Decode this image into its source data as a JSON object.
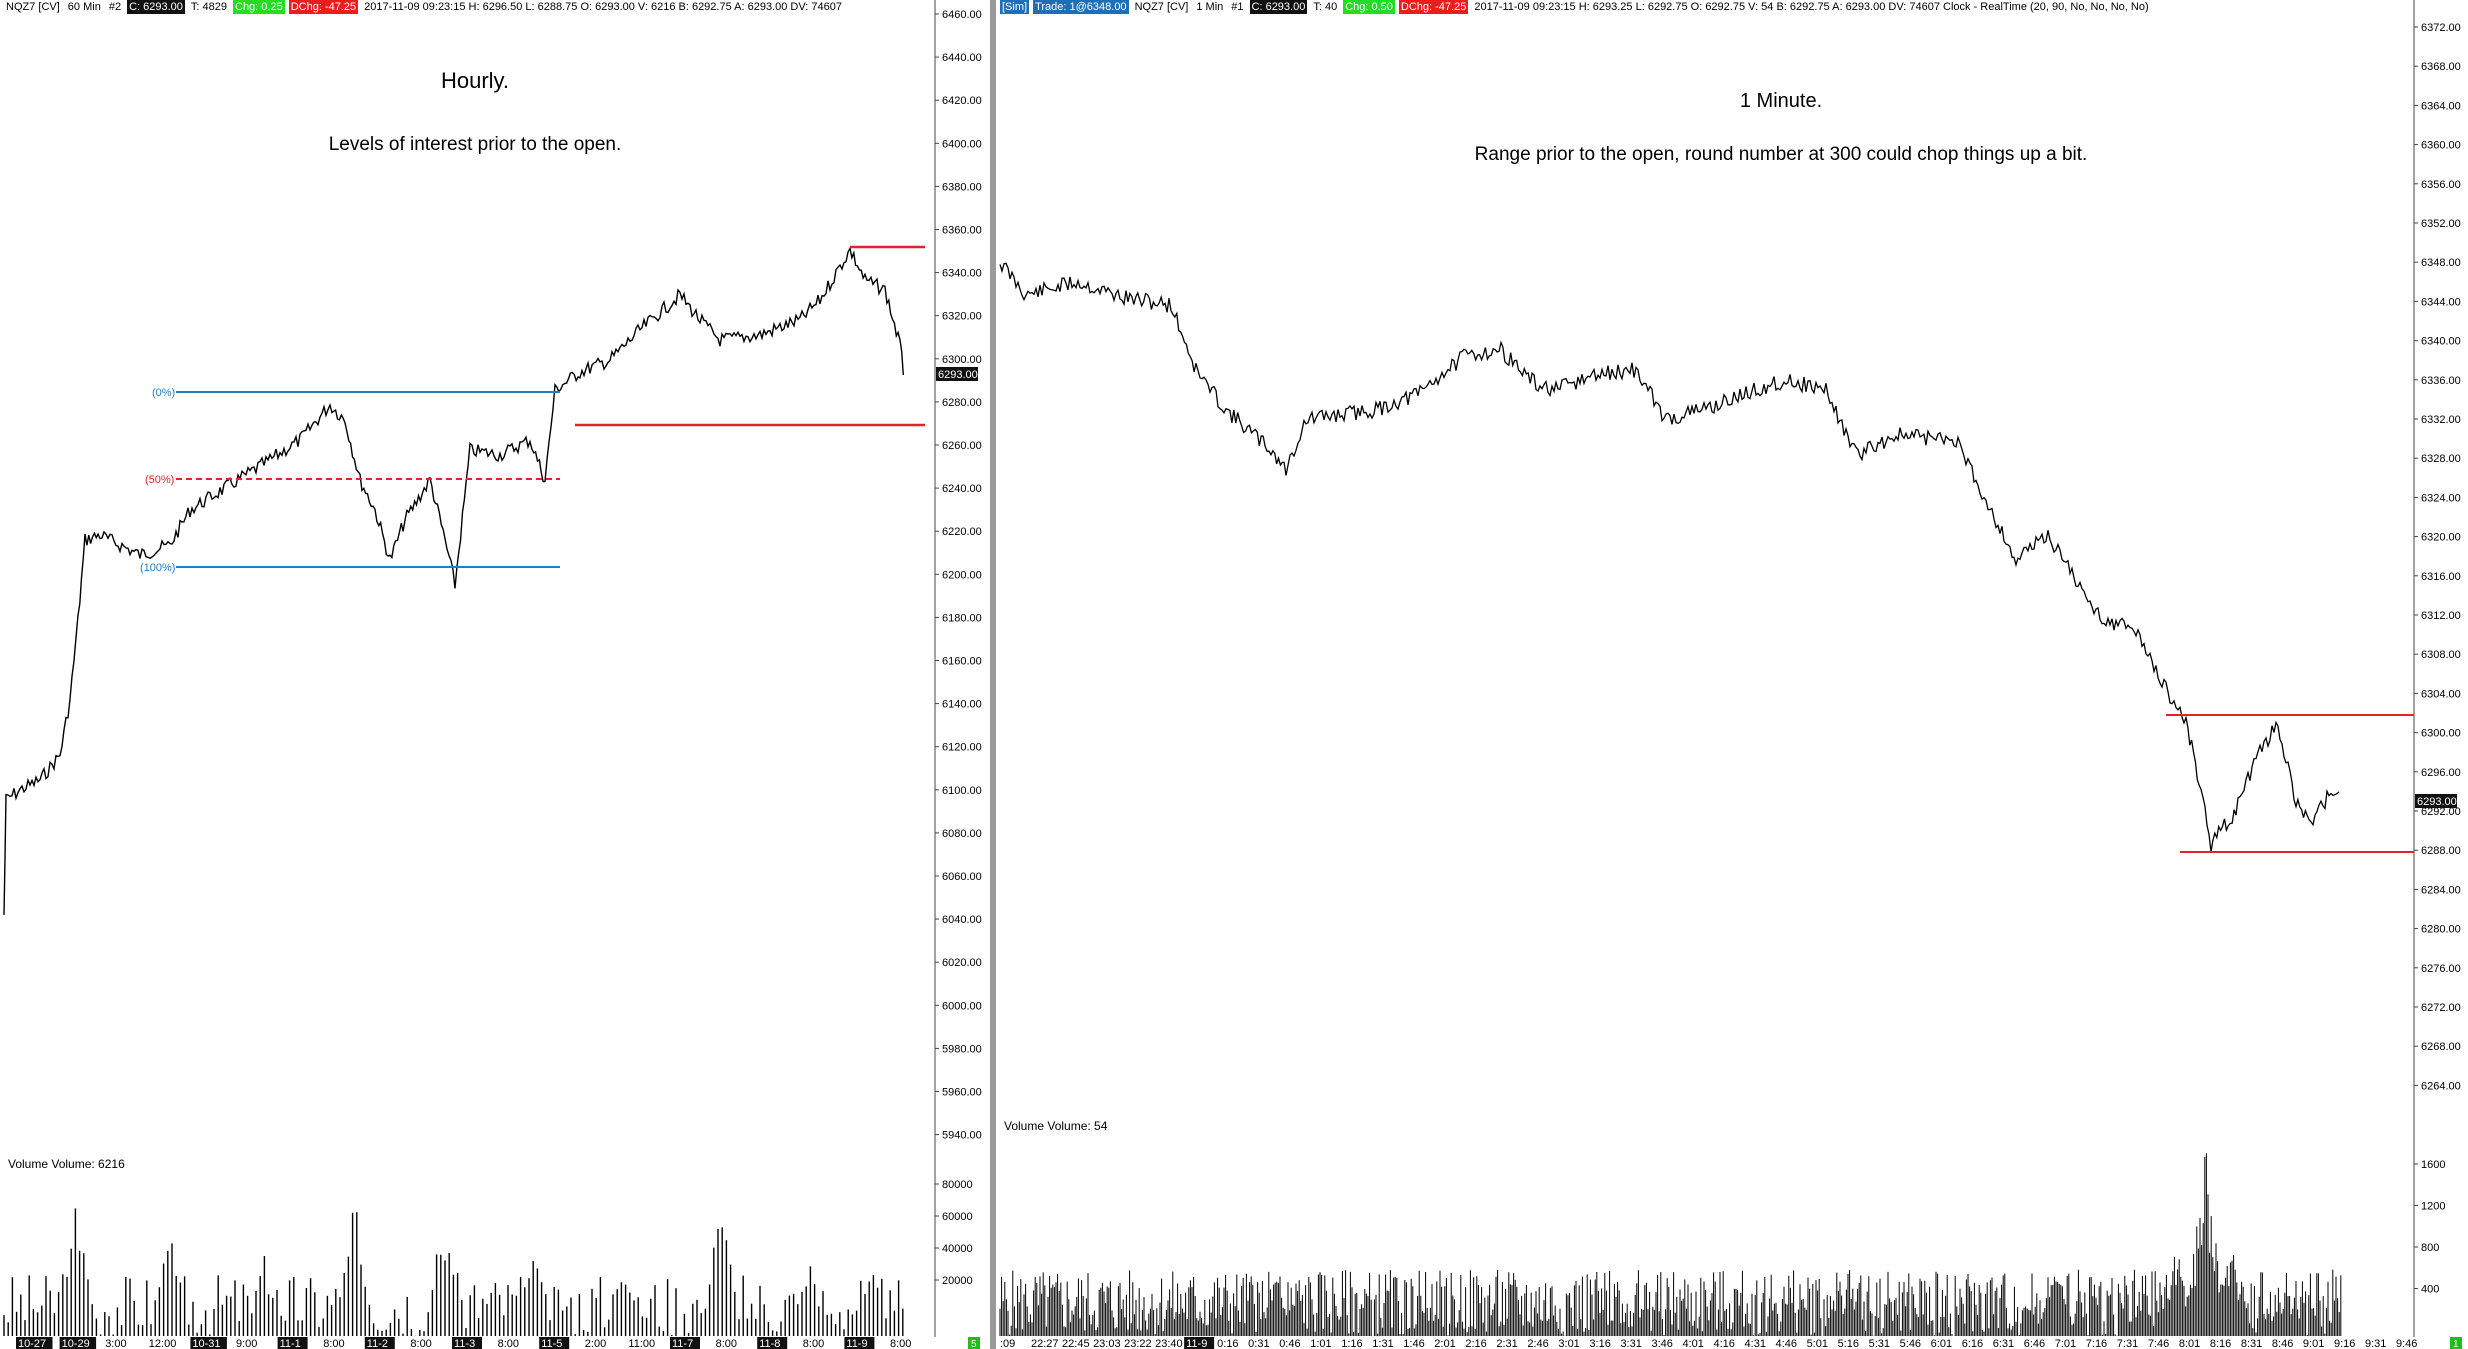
{
  "left": {
    "header": {
      "symbol": "NQZ7 [CV]",
      "interval": "60 Min",
      "num": "#2",
      "close": "C: 6293.00",
      "ticks": "T: 4829",
      "chg": "Chg: 0.25",
      "dchg": "DChg: -47.25",
      "info": "2017-11-09 09:23:15 H: 6296.50 L: 6288.75 O: 6293.00 V: 6216 B: 6292.75 A: 6293.00 DV: 74607"
    },
    "title": "Hourly.",
    "subtitle": "Levels of interest prior to the open.",
    "price_axis": [
      "6460.00",
      "6440.00",
      "6420.00",
      "6400.00",
      "6380.00",
      "6360.00",
      "6340.00",
      "6320.00",
      "6300.00",
      "6280.00",
      "6260.00",
      "6240.00",
      "6220.00",
      "6200.00",
      "6180.00",
      "6160.00",
      "6140.00",
      "6120.00",
      "6100.00",
      "6080.00",
      "6060.00",
      "6040.00",
      "6020.00",
      "6000.00",
      "5980.00",
      "5960.00",
      "5940.00"
    ],
    "last_price": "6293.00",
    "fib": {
      "l0": "(0%)",
      "l50": "(50%)",
      "l100": "(100%)"
    },
    "volume_label": "Volume  Volume: 6216",
    "volume_axis": [
      "80000",
      "60000",
      "40000",
      "20000"
    ],
    "time_axis": [
      "10-27",
      "10-29",
      "3:00",
      "12:00",
      "10-31",
      "9:00",
      "11-1",
      "8:00",
      "11-2",
      "8:00",
      "11-3",
      "8:00",
      "11-5",
      "2:00",
      "11:00",
      "11-7",
      "8:00",
      "11-8",
      "8:00",
      "11-9",
      "8:00"
    ],
    "corner_badge": "5"
  },
  "right": {
    "header": {
      "sim": "[Sim]",
      "trade": "Trade: 1@6348.00",
      "symbol": "NQZ7 [CV]",
      "interval": "1 Min",
      "num": "#1",
      "close": "C: 6293.00",
      "ticks": "T: 40",
      "chg": "Chg: 0.50",
      "dchg": "DChg: -47.25",
      "info": "2017-11-09 09:23:15 H: 6293.25 L: 6292.75 O: 6292.75 V: 54 B: 6292.75 A: 6293.00 DV: 74607 Clock - RealTime  (20, 90, No, No, No, No)"
    },
    "title": "1 Minute.",
    "subtitle": "Range prior to the open, round number at 300 could chop things up a bit.",
    "price_axis": [
      "6372.00",
      "6368.00",
      "6364.00",
      "6360.00",
      "6356.00",
      "6352.00",
      "6348.00",
      "6344.00",
      "6340.00",
      "6336.00",
      "6332.00",
      "6328.00",
      "6324.00",
      "6320.00",
      "6316.00",
      "6312.00",
      "6308.00",
      "6304.00",
      "6300.00",
      "6296.00",
      "6292.00",
      "6288.00",
      "6284.00",
      "6280.00",
      "6276.00",
      "6272.00",
      "6268.00",
      "6264.00"
    ],
    "last_price": "6293.00",
    "volume_label": "Volume  Volume: 54",
    "volume_axis": [
      "1600",
      "1200",
      "800",
      "400"
    ],
    "time_axis": [
      ":09",
      "22:27",
      "22:45",
      "23:03",
      "23:22",
      "23:40",
      "11-9",
      "0:16",
      "0:31",
      "0:46",
      "1:01",
      "1:16",
      "1:31",
      "1:46",
      "2:01",
      "2:16",
      "2:31",
      "2:46",
      "3:01",
      "3:16",
      "3:31",
      "3:46",
      "4:01",
      "4:16",
      "4:31",
      "4:46",
      "5:01",
      "5:16",
      "5:31",
      "5:46",
      "6:01",
      "6:16",
      "6:31",
      "6:46",
      "7:01",
      "7:16",
      "7:31",
      "7:46",
      "8:01",
      "8:16",
      "8:31",
      "8:46",
      "9:01",
      "9:16",
      "9:31",
      "9:46"
    ],
    "corner_badge": "1"
  },
  "colors": {
    "fib_blue": "#1f7fc4",
    "fib_red": "#e0242a",
    "level_red": "#e0242a",
    "price_tag": "#111111"
  }
}
